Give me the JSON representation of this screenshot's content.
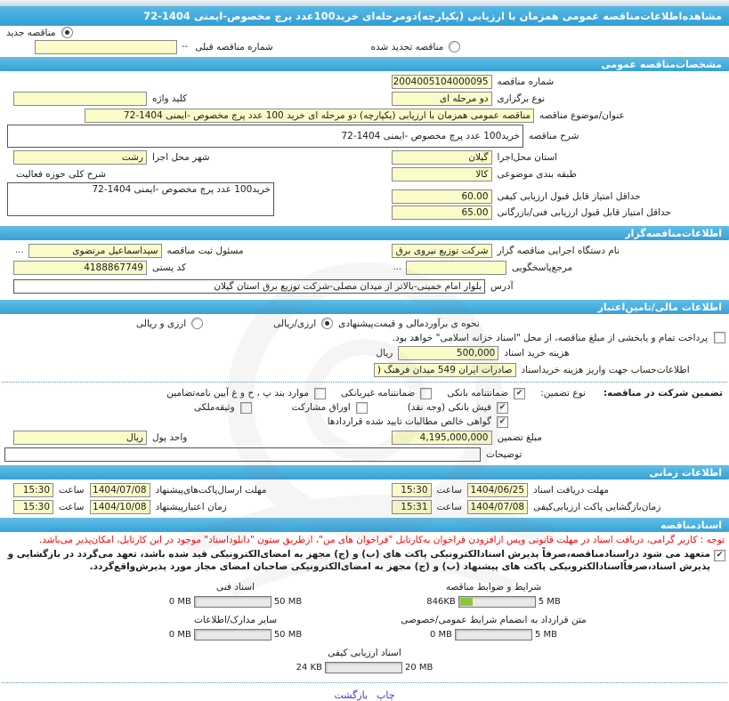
{
  "title": "مشاهده‌اطلاعات‌مناقصه عمومی همزمان با ارزیابی (یکپارچه)دومرحله‌ای خرید100عدد پرچ مخصوص-ایمنی 1404-72",
  "top": {
    "new_option": {
      "label": "مناقصه جدید",
      "selected": true
    },
    "renewed_option": {
      "label": "مناقصه تجدید شده",
      "selected": false
    },
    "prev_no_label": "شماره مناقصه قبلی",
    "prev_no_value": "--"
  },
  "general": {
    "header": "مشخصات‌مناقصه عمومی",
    "tender_no_label": "شماره مناقصه",
    "tender_no": "2004005104000095",
    "type_label": "نوع برگزاری",
    "type_value": "دو مرحله ای",
    "keyword_label": "کلید واژه",
    "keyword_value": "",
    "subject_label": "عنوان/موضوع مناقصه",
    "subject_value": "مناقصه عمومی همزمان با ارزیابی (یکپارچه) دو مرحله ای خرید 100 عدد پرچ مخصوص -ایمنی 1404-72",
    "desc_label": "شرح مناقصه",
    "desc_value": "خرید100 عدد پرچ مخصوص -ایمنی 1404-72",
    "province_label": "استان محل‌اجرا",
    "province_value": "گیلان",
    "city_label": "شهر محل اجرا",
    "city_value": "رشت",
    "category_label": "طبقه بندی موضوعی",
    "category_value": "کالا",
    "activity_label": "شرح کلی حوزه فعالیت",
    "activity_value": "خرید100 عدد پرچ مخصوص -ایمنی 1404-72",
    "min_quality_label": "حداقل امتیاز قابل قبول ارزیابی کیفی",
    "min_quality_value": "60.00",
    "min_tech_label": "حداقل امتیاز قابل قبول ارزیابی فنی/بازرگانی",
    "min_tech_value": "65.00"
  },
  "announcer": {
    "header": "اطلاعات‌مناقصه‌گزار",
    "agency_label": "نام دستگاه اجرایی مناقصه گزار",
    "agency_value": "شرکت توزیع نیروی برق است",
    "registrar_label": "مسئول ثبت مناقصه",
    "registrar_value": "سیداسماعیل مرتضوی",
    "registrar_more": "...",
    "contact_label": "مرجع‌پاسخگویی",
    "contact_value": "",
    "contact_more": "...",
    "postal_label": "کد پستی",
    "postal_value": "4188867749",
    "address_label": "آدرس",
    "address_value": "بلوار امام خمینی-بالاتر از میدان مصلی-شرکت توزیع برق استان گیلان"
  },
  "financial": {
    "header": "اطلاعات مالی/تامین‌اعتبار",
    "estimate_label": "نحوه ی برآوردمالی و قیمت‌پیشنهادی",
    "estimate_options": [
      {
        "label": "ارزی/ریالی",
        "selected": true
      },
      {
        "label": "ارزی و ریالی",
        "selected": false
      }
    ],
    "treasury": {
      "label": "پرداخت تمام و یابخشی از مبلغ مناقصه، از محل \"اسناد خزانه اسلامی\" خواهد بود.",
      "checked": false
    },
    "doc_fee_label": "هزینه خرید اسناد",
    "doc_fee_value": "500,000",
    "doc_fee_unit": "ریال",
    "account_label": "اطلاعات‌حساب جهت واریز هزینه خریداسناد",
    "account_value": "صادرات ایران 549 میدان فرهنگ (",
    "guarantee_label": "تضمین شرکت در مناقصه:",
    "guarantee_type_label": "نوع تضمین:",
    "checks": [
      {
        "label": "ضمانتنامه بانکی",
        "checked": true
      },
      {
        "label": "ضمانتنامه غیربانکی",
        "checked": false
      },
      {
        "label": "موارد بند پ ، ح و غ آیین نامه‌تضامین",
        "checked": false
      },
      {
        "label": "فیش بانکی (وجه نقد)",
        "checked": true
      },
      {
        "label": "اوراق مشارکت",
        "checked": false
      },
      {
        "label": "وثیقه‌ملکی",
        "checked": false
      },
      {
        "label": "گواهی خالص مطالبات تایید شده قراردادها",
        "checked": true
      }
    ],
    "amount_label": "مبلغ تضمین",
    "amount_value": "4,195,000,000",
    "currency_label": "واحد پول",
    "currency_value": "ریال",
    "notes_label": "توضیحات",
    "notes_value": ""
  },
  "timing": {
    "header": "اطلاعات زمانی",
    "hour_label": "ساعت",
    "rows": [
      {
        "label": "مهلت دریافت اسناد",
        "date": "1404/06/25",
        "time": "15:30"
      },
      {
        "label": "مهلت ارسال‌پاکت‌های‌پیشنهاد",
        "date": "1404/07/08",
        "time": "15:30"
      },
      {
        "label": "زمان‌بازگشایی پاکت ارزیابی‌کیفی",
        "date": "1404/07/08",
        "time": "15:31"
      },
      {
        "label": "زمان اعتبارپیشنهاد",
        "date": "1404/10/08",
        "time": "15:30"
      }
    ]
  },
  "docs": {
    "header": "اسنادمناقصه",
    "red_note": "توجه : کاربر گرامی، دریافت اسناد در مهلت قانونی وپس ازافزودن فراخوان به‌کارتابل \"فراخوان های من\"، ازطریق ستون \"دانلوداسناد\" موجود در این کارتابل، امکان‌پذیر می‌باشد.",
    "commitment": {
      "label": "متعهد می شود دراسنادمناقصه،صرفاً پذیرش اسنادالکترونیکی پاکت های (ب) و (ج) مجهز به امضای‌الکترونیکی قید شده باشد، تعهد می‌گردد در بازگشایی و پذیرش اسناد،صرفاًاسنادالکترونیکی پاکت های پیشنهاد (ب) و (ج) مجهز به امضای‌الکترونیکی صاحبان امضای مجاز مورد پذیرش‌واقع‌گردد.",
      "checked": true
    },
    "uploads": [
      {
        "name": "شرایط و ضوابط مناقصه",
        "current": "846KB",
        "max": "5 MB",
        "pct": 17
      },
      {
        "name": "اسناد فنی",
        "current": "0 MB",
        "max": "50 MB",
        "pct": 0
      },
      {
        "name": "متن قرارداد به انضمام شرایط عمومی/خصوصی",
        "current": "0 MB",
        "max": "5 MB",
        "pct": 0
      },
      {
        "name": "سایر مدارک/اطلاعات",
        "current": "0 MB",
        "max": "50 MB",
        "pct": 0
      },
      {
        "name": "اسناد ارزیابی کیفی",
        "current": "24 KB",
        "max": "20 MB",
        "pct": 0
      }
    ]
  },
  "footer": {
    "print_label": "چاپ",
    "back_label": "بازگشت"
  },
  "colors": {
    "header_blue": "#3AA6DA",
    "input_yellow": "#FBFBC9",
    "note_red": "#FF0000",
    "progress_green": "#8CC63E",
    "link_blue": "#3A3ACD"
  }
}
